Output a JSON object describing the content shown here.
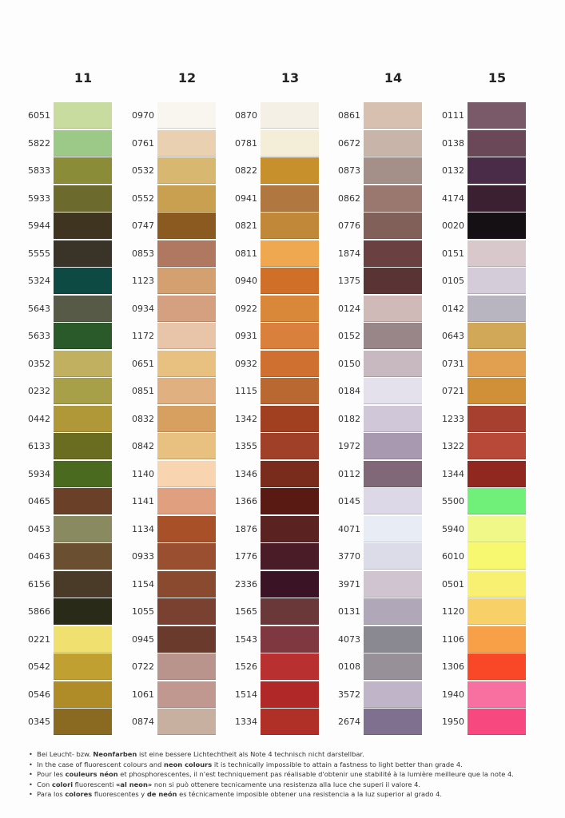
{
  "columns": [
    {
      "header": "11",
      "codes": [
        "6051",
        "5822",
        "5833",
        "5933",
        "5944",
        "5555",
        "5324",
        "5643",
        "5633",
        "0352",
        "0232",
        "0442",
        "6133",
        "5934",
        "0465",
        "0453",
        "0463",
        "6156",
        "5866",
        "0221",
        "0542",
        "0546",
        "0345"
      ],
      "colors": [
        "#c8dca0",
        "#9cc888",
        "#8a8c38",
        "#6c6a2c",
        "#3e3420",
        "#3a3428",
        "#0e4a44",
        "#585a48",
        "#2a5a2a",
        "#c0b060",
        "#a8a048",
        "#b09838",
        "#6a6c20",
        "#4a6a20",
        "#6a4028",
        "#8a8a60",
        "#6a5030",
        "#4a3a28",
        "#2a2a18",
        "#f0e070",
        "#c0a030",
        "#b08c28",
        "#8a6a20"
      ]
    },
    {
      "header": "12",
      "codes": [
        "0970",
        "0761",
        "0532",
        "0552",
        "0747",
        "0853",
        "1123",
        "0934",
        "1172",
        "0651",
        "0851",
        "0832",
        "0842",
        "1140",
        "1141",
        "1134",
        "0933",
        "1154",
        "1055",
        "0945",
        "0722",
        "1061",
        "0874"
      ],
      "colors": [
        "#f8f6ee",
        "#e8d0b0",
        "#d8b870",
        "#c8a050",
        "#8a5a20",
        "#b07860",
        "#d4a070",
        "#d4a080",
        "#e8c4a8",
        "#e8c080",
        "#e0b080",
        "#d8a060",
        "#e8c080",
        "#f8d4b0",
        "#e0a080",
        "#a85028",
        "#9a5030",
        "#8a4a30",
        "#7a4030",
        "#6a3a2c",
        "#b8948c",
        "#c09890",
        "#c8b0a0"
      ]
    },
    {
      "header": "13",
      "codes": [
        "0870",
        "0781",
        "0822",
        "0941",
        "0821",
        "0811",
        "0940",
        "0922",
        "0931",
        "0932",
        "1115",
        "1342",
        "1355",
        "1346",
        "1366",
        "1876",
        "1776",
        "2336",
        "1565",
        "1543",
        "1526",
        "1514",
        "1334"
      ],
      "colors": [
        "#f4f0e6",
        "#f4eed8",
        "#c8902c",
        "#b07840",
        "#c08838",
        "#f0a850",
        "#d07028",
        "#d88838",
        "#d8803c",
        "#d07030",
        "#b86830",
        "#a04020",
        "#a04028",
        "#7a2c1c",
        "#5a1a14",
        "#5a2220",
        "#4a1c28",
        "#3a1424",
        "#6a3838",
        "#803840",
        "#b83030",
        "#b02828",
        "#b03028"
      ]
    },
    {
      "header": "14",
      "codes": [
        "0861",
        "0672",
        "0873",
        "0862",
        "0776",
        "1874",
        "1375",
        "0124",
        "0152",
        "0150",
        "0184",
        "0182",
        "1972",
        "0112",
        "0145",
        "4071",
        "3770",
        "3971",
        "0131",
        "4073",
        "0108",
        "3572",
        "2674"
      ],
      "colors": [
        "#d8c0b0",
        "#c8b4a8",
        "#a49088",
        "#9a7870",
        "#806058",
        "#6a4040",
        "#5a3434",
        "#d0bab8",
        "#988688",
        "#c8b8c0",
        "#e4e0ec",
        "#d0c8d8",
        "#a898b0",
        "#806878",
        "#dcd8e8",
        "#e8ecf4",
        "#dcdce8",
        "#d0c4d0",
        "#b0a8b8",
        "#8a8890",
        "#989098",
        "#c0b4c8",
        "#807090"
      ]
    },
    {
      "header": "15",
      "codes": [
        "0111",
        "0138",
        "0132",
        "4174",
        "0020",
        "0151",
        "0105",
        "0142",
        "0643",
        "0731",
        "0721",
        "1233",
        "1322",
        "1344",
        "5500",
        "5940",
        "6010",
        "0501",
        "1120",
        "1106",
        "1306",
        "1940",
        "1950"
      ],
      "colors": [
        "#7a5a68",
        "#6a4858",
        "#4a2c48",
        "#3a2030",
        "#141014",
        "#d8c8cc",
        "#d4ccd8",
        "#b8b4c0",
        "#d0a858",
        "#e0a050",
        "#d09038",
        "#a84030",
        "#b84838",
        "#902820",
        "#70f078",
        "#f0f888",
        "#f8f870",
        "#f8f070",
        "#f8d068",
        "#f8a048",
        "#f84828",
        "#f870a0",
        "#f84880"
      ]
    }
  ],
  "notes": [
    [
      {
        "text": "Bei Leucht- bzw. ",
        "bold": false
      },
      {
        "text": "Neonfarben",
        "bold": true
      },
      {
        "text": " ist eine bessere Lichtechtheit als Note 4 technisch nicht darstellbar.",
        "bold": false
      }
    ],
    [
      {
        "text": "In the case of fluorescent colours and ",
        "bold": false
      },
      {
        "text": "neon colours",
        "bold": true
      },
      {
        "text": " it is technically impossible to attain a fastness to light better than grade 4.",
        "bold": false
      }
    ],
    [
      {
        "text": "Pour les ",
        "bold": false
      },
      {
        "text": "couleurs néon",
        "bold": true
      },
      {
        "text": " et phosphorescentes, il n'est techniquement pas réalisable d'obtenir une stabilité à la lumière meilleure que la note 4.",
        "bold": false
      }
    ],
    [
      {
        "text": "Con ",
        "bold": false
      },
      {
        "text": "colori",
        "bold": true
      },
      {
        "text": " fluorescenti ",
        "bold": false
      },
      {
        "text": "«al neon»",
        "bold": true
      },
      {
        "text": " non si può ottenere tecnicamente una resistenza alla luce che superi il valore 4.",
        "bold": false
      }
    ],
    [
      {
        "text": "Para los ",
        "bold": false
      },
      {
        "text": "colores",
        "bold": true
      },
      {
        "text": " fluorescentes y ",
        "bold": false
      },
      {
        "text": "de neón",
        "bold": true
      },
      {
        "text": " es técnicamente imposible obtener una resistencia a la luz  superior al grado 4.",
        "bold": false
      }
    ]
  ]
}
